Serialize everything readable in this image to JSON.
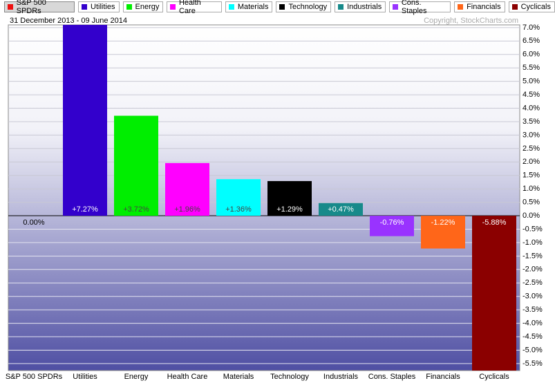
{
  "chart_data": {
    "type": "bar",
    "subtitle": "31 December 2013 - 09 June 2014",
    "copyright": "Copyright, StockCharts.com",
    "categories": [
      "S&P 500 SPDRs",
      "Utilities",
      "Energy",
      "Health Care",
      "Materials",
      "Technology",
      "Industrials",
      "Cons. Staples",
      "Financials",
      "Cyclicals"
    ],
    "values": [
      0.0,
      7.27,
      3.72,
      1.96,
      1.36,
      1.29,
      0.47,
      -0.76,
      -1.22,
      -5.88
    ],
    "value_labels": [
      "0.00%",
      "+7.27%",
      "+3.72%",
      "+1.96%",
      "+1.36%",
      "+1.29%",
      "+0.47%",
      "-0.76%",
      "-1.22%",
      "-5.88%"
    ],
    "colors": [
      "#ee1111",
      "#3300cc",
      "#00ee00",
      "#ff00ff",
      "#00ffff",
      "#000000",
      "#178a8a",
      "#9933ff",
      "#ff6619",
      "#8b0000"
    ],
    "ylim": [
      -5.76,
      7.1
    ],
    "yticks": [
      {
        "value": 7,
        "label": "7.0%"
      },
      {
        "value": 6.5,
        "label": "6.5%"
      },
      {
        "value": 6,
        "label": "6.0%"
      },
      {
        "value": 5.5,
        "label": "5.5%"
      },
      {
        "value": 5,
        "label": "5.0%"
      },
      {
        "value": 4.5,
        "label": "4.5%"
      },
      {
        "value": 4,
        "label": "4.0%"
      },
      {
        "value": 3.5,
        "label": "3.5%"
      },
      {
        "value": 3,
        "label": "3.0%"
      },
      {
        "value": 2.5,
        "label": "2.5%"
      },
      {
        "value": 2,
        "label": "2.0%"
      },
      {
        "value": 1.5,
        "label": "1.5%"
      },
      {
        "value": 1,
        "label": "1.0%"
      },
      {
        "value": 0.5,
        "label": "0.5%"
      },
      {
        "value": 0,
        "label": "0.0%"
      },
      {
        "value": -0.5,
        "label": "-0.5%"
      },
      {
        "value": -1,
        "label": "-1.0%"
      },
      {
        "value": -1.5,
        "label": "-1.5%"
      },
      {
        "value": -2,
        "label": "-2.0%"
      },
      {
        "value": -2.5,
        "label": "-2.5%"
      },
      {
        "value": -3,
        "label": "-3.0%"
      },
      {
        "value": -3.5,
        "label": "-3.5%"
      },
      {
        "value": -4,
        "label": "-4.0%"
      },
      {
        "value": -4.5,
        "label": "-4.5%"
      },
      {
        "value": -5,
        "label": "-5.0%"
      },
      {
        "value": -5.5,
        "label": "-5.5%"
      }
    ],
    "grid": true
  }
}
